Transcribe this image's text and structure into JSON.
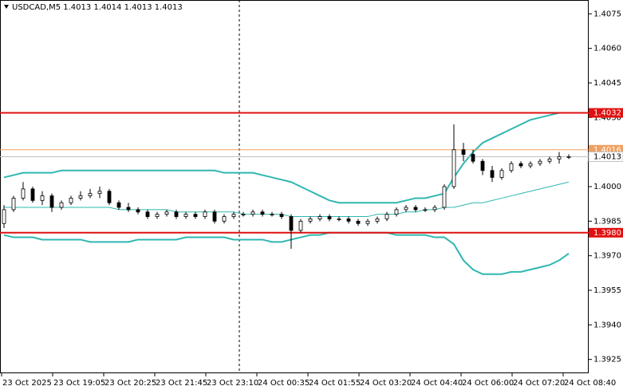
{
  "chart_data": {
    "type": "candlestick",
    "title": "USDCAD,M5  1.4013 1.4014 1.4013 1.4013",
    "time_labels": [
      "23 Oct 2025",
      "23 Oct 19:05",
      "23 Oct 20:25",
      "23 Oct 21:45",
      "23 Oct 23:10",
      "24 Oct 00:35",
      "24 Oct 01:55",
      "24 Oct 03:20",
      "24 Oct 04:40",
      "24 Oct 06:00",
      "24 Oct 07:20",
      "24 Oct 08:40"
    ],
    "open": [
      1.3984,
      1.399,
      1.3995,
      1.3999,
      1.3994,
      1.3996,
      1.3991,
      1.3993,
      1.3995,
      1.3996,
      1.3997,
      1.3998,
      1.3993,
      1.3991,
      1.399,
      1.3989,
      1.3987,
      1.3988,
      1.3989,
      1.3987,
      1.3988,
      1.3987,
      1.3989,
      1.3985,
      1.3987,
      1.3988,
      1.3988,
      1.3989,
      1.3988,
      1.3988,
      1.3987,
      1.3981,
      1.3985,
      1.3986,
      1.3987,
      1.3986,
      1.3986,
      1.3985,
      1.3984,
      1.3985,
      1.3986,
      1.3988,
      1.399,
      1.3991,
      1.399,
      1.399,
      1.3991,
      1.4,
      1.4016,
      1.4014,
      1.4011,
      1.4007,
      1.4004,
      1.4007,
      1.401,
      1.4009,
      1.401,
      1.4011,
      1.4012,
      1.4013
    ],
    "high": [
      1.3992,
      1.3996,
      1.4002,
      1.4,
      1.3998,
      1.3997,
      1.3994,
      1.3996,
      1.3998,
      1.3999,
      1.4,
      1.3999,
      1.3994,
      1.3993,
      1.3991,
      1.399,
      1.3989,
      1.399,
      1.399,
      1.3989,
      1.3989,
      1.399,
      1.399,
      1.3988,
      1.3989,
      1.3989,
      1.399,
      1.399,
      1.3989,
      1.3989,
      1.3988,
      1.3986,
      1.3987,
      1.3988,
      1.3988,
      1.3987,
      1.3987,
      1.3986,
      1.3986,
      1.3987,
      1.3989,
      1.3991,
      1.3992,
      1.3992,
      1.3991,
      1.3992,
      1.4001,
      1.4027,
      1.4019,
      1.4016,
      1.4012,
      1.4009,
      1.4008,
      1.4011,
      1.4011,
      1.4011,
      1.4012,
      1.4013,
      1.4015,
      1.4014
    ],
    "low": [
      1.3982,
      1.3989,
      1.3994,
      1.3993,
      1.3992,
      1.3989,
      1.399,
      1.3992,
      1.3994,
      1.3995,
      1.3995,
      1.3992,
      1.399,
      1.3989,
      1.3988,
      1.3986,
      1.3986,
      1.3987,
      1.3986,
      1.3986,
      1.3986,
      1.3986,
      1.3984,
      1.3984,
      1.3986,
      1.3987,
      1.3987,
      1.3987,
      1.3987,
      1.3986,
      1.3973,
      1.398,
      1.3984,
      1.3985,
      1.3985,
      1.3985,
      1.3984,
      1.3983,
      1.3983,
      1.3984,
      1.3985,
      1.3987,
      1.3989,
      1.3989,
      1.3989,
      1.3989,
      1.399,
      1.3999,
      1.4011,
      1.401,
      1.4005,
      1.4002,
      1.4003,
      1.4006,
      1.4008,
      1.4008,
      1.4009,
      1.401,
      1.401,
      1.4012
    ],
    "close": [
      1.399,
      1.3995,
      1.3999,
      1.3994,
      1.3996,
      1.3991,
      1.3993,
      1.3995,
      1.3996,
      1.3997,
      1.3998,
      1.3993,
      1.3991,
      1.399,
      1.3989,
      1.3987,
      1.3988,
      1.3989,
      1.3987,
      1.3988,
      1.3987,
      1.3989,
      1.3985,
      1.3987,
      1.3988,
      1.3988,
      1.3989,
      1.3988,
      1.3988,
      1.3987,
      1.3981,
      1.3985,
      1.3986,
      1.3987,
      1.3986,
      1.3986,
      1.3985,
      1.3984,
      1.3985,
      1.3986,
      1.3988,
      1.399,
      1.3991,
      1.399,
      1.399,
      1.3991,
      1.4,
      1.4016,
      1.4014,
      1.4011,
      1.4007,
      1.4004,
      1.4007,
      1.401,
      1.4009,
      1.401,
      1.4011,
      1.4012,
      1.4013,
      1.4013
    ],
    "bollinger": {
      "color": "#2fb7b0",
      "upper": [
        1.4004,
        1.4005,
        1.4006,
        1.4006,
        1.4006,
        1.4006,
        1.4007,
        1.4007,
        1.4007,
        1.4007,
        1.4007,
        1.4007,
        1.4007,
        1.4007,
        1.4007,
        1.4007,
        1.4007,
        1.4007,
        1.4007,
        1.4007,
        1.4007,
        1.4007,
        1.4007,
        1.4006,
        1.4006,
        1.4006,
        1.4006,
        1.4005,
        1.4004,
        1.4003,
        1.4002,
        1.4,
        1.3998,
        1.3996,
        1.3994,
        1.3993,
        1.3993,
        1.3993,
        1.3993,
        1.3993,
        1.3993,
        1.3993,
        1.3994,
        1.3995,
        1.3995,
        1.3996,
        1.3997,
        1.4004,
        1.401,
        1.4015,
        1.4019,
        1.4021,
        1.4023,
        1.4025,
        1.4027,
        1.4029,
        1.403,
        1.4031,
        1.4032,
        null
      ],
      "middle": [
        1.3991,
        1.3991,
        1.3991,
        1.3991,
        1.3991,
        1.3991,
        1.3991,
        1.3991,
        1.3991,
        1.3991,
        1.3991,
        1.3991,
        1.399,
        1.399,
        1.399,
        1.399,
        1.399,
        1.399,
        1.3989,
        1.3989,
        1.3989,
        1.3989,
        1.3989,
        1.3989,
        1.3989,
        1.3988,
        1.3988,
        1.3988,
        1.3988,
        1.3988,
        1.3987,
        1.3987,
        1.3987,
        1.3987,
        1.3987,
        1.3987,
        1.3987,
        1.3987,
        1.3987,
        1.3988,
        1.3988,
        1.3988,
        1.3989,
        1.3989,
        1.399,
        1.399,
        1.3991,
        1.3991,
        1.3992,
        1.3993,
        1.3993,
        1.3994,
        1.3995,
        1.3996,
        1.3997,
        1.3998,
        1.3999,
        1.4,
        1.4001,
        1.4002
      ],
      "lower": [
        1.3979,
        1.3978,
        1.3978,
        1.3978,
        1.3977,
        1.3977,
        1.3977,
        1.3977,
        1.3977,
        1.3976,
        1.3976,
        1.3976,
        1.3976,
        1.3976,
        1.3977,
        1.3977,
        1.3977,
        1.3977,
        1.3977,
        1.3978,
        1.3978,
        1.3978,
        1.3978,
        1.3978,
        1.3977,
        1.3977,
        1.3977,
        1.3977,
        1.3976,
        1.3976,
        1.3977,
        1.3978,
        1.3979,
        1.3979,
        1.398,
        1.398,
        1.398,
        1.398,
        1.398,
        1.398,
        1.398,
        1.3979,
        1.3979,
        1.3979,
        1.3979,
        1.3978,
        1.3978,
        1.3975,
        1.3968,
        1.3964,
        1.3962,
        1.3962,
        1.3962,
        1.3963,
        1.3963,
        1.3964,
        1.3965,
        1.3966,
        1.3968,
        1.3971
      ]
    },
    "ylim": [
      1.3919,
      1.4081
    ],
    "yticks": [
      1.4075,
      {
        "value": 1.406,
        "label": "1.4060"
      },
      1.4045,
      {
        "value": 1.403,
        "label": "1.4030"
      },
      {
        "value": 1.4,
        "label": "1.4000"
      },
      1.3985,
      {
        "value": 1.397,
        "label": "1.3970"
      },
      1.3955,
      {
        "value": 1.394,
        "label": "1.3940"
      },
      1.3925
    ],
    "levels": [
      {
        "value": 1.4032,
        "color": "#e01010"
      },
      {
        "value": 1.4016,
        "color": "#f0a060"
      },
      {
        "value": 1.398,
        "label": "1.3980",
        "color": "#e01010"
      }
    ],
    "current_price": {
      "value": 1.4013,
      "color": "#c0c0c0"
    }
  }
}
